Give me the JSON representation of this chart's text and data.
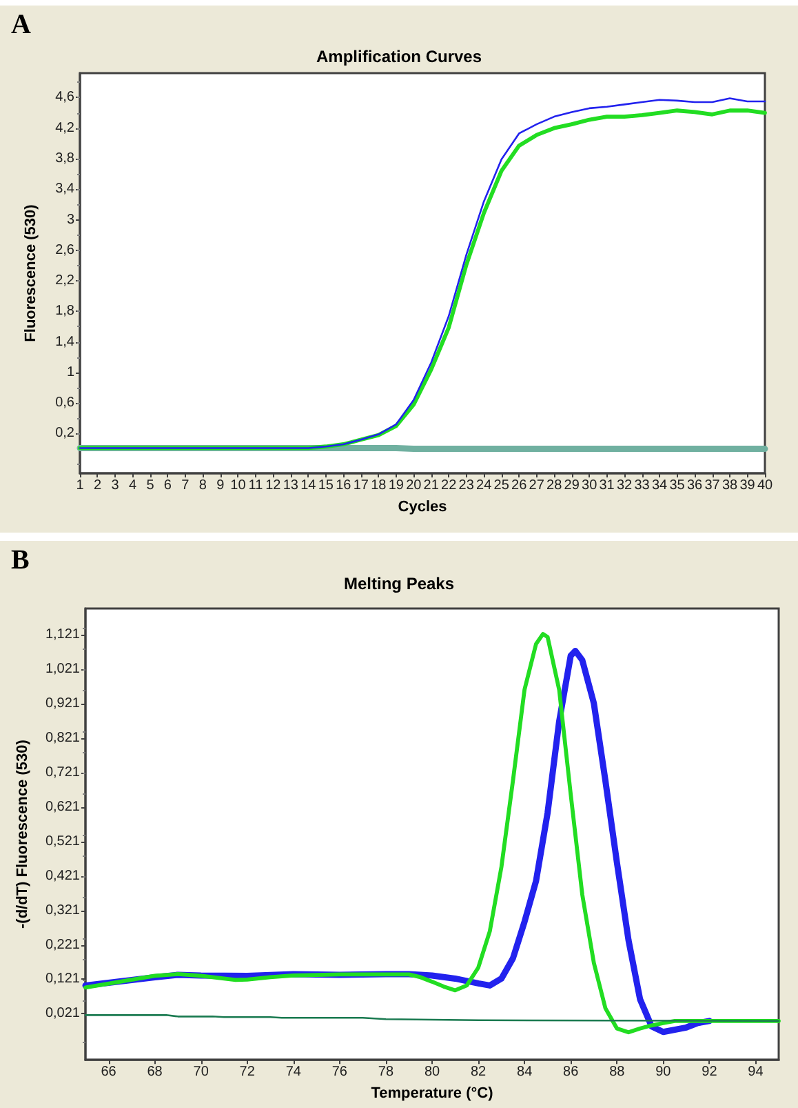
{
  "chart_data": [
    {
      "type": "line",
      "title": "Amplification Curves",
      "xlabel": "Cycles",
      "ylabel": "Fluorescence (530)",
      "annotations": [
        "A"
      ],
      "x": [
        1,
        2,
        3,
        4,
        5,
        6,
        7,
        8,
        9,
        10,
        11,
        12,
        13,
        14,
        15,
        16,
        17,
        18,
        19,
        20,
        21,
        22,
        23,
        24,
        25,
        26,
        27,
        28,
        29,
        30,
        31,
        32,
        33,
        34,
        35,
        36,
        37,
        38,
        39,
        40
      ],
      "xlim": [
        1,
        40
      ],
      "xticks": [
        1,
        2,
        3,
        4,
        5,
        6,
        7,
        8,
        9,
        10,
        11,
        12,
        13,
        14,
        15,
        16,
        17,
        18,
        19,
        20,
        21,
        22,
        23,
        24,
        25,
        26,
        27,
        28,
        29,
        30,
        31,
        32,
        33,
        34,
        35,
        36,
        37,
        38,
        39,
        40
      ],
      "ylim": [
        -0.32,
        4.92
      ],
      "yticks": [
        {
          "value": 0.2,
          "label": "0,2"
        },
        {
          "value": 0.6,
          "label": "0,6"
        },
        {
          "value": 1,
          "label": "1"
        },
        {
          "value": 1.4,
          "label": "1,4"
        },
        {
          "value": 1.8,
          "label": "1,8"
        },
        {
          "value": 2.2,
          "label": "2,2"
        },
        {
          "value": 2.6,
          "label": "2,6"
        },
        {
          "value": 3,
          "label": "3"
        },
        {
          "value": 3.4,
          "label": "3,4"
        },
        {
          "value": 3.8,
          "label": "3,8"
        },
        {
          "value": 4.2,
          "label": "4,2"
        },
        {
          "value": 4.6,
          "label": "4,6"
        }
      ],
      "series": [
        {
          "color": "#70b0a0",
          "values": [
            0.01,
            0.01,
            0.01,
            0.01,
            0.01,
            0.01,
            0.01,
            0.01,
            0.01,
            0.01,
            0.01,
            0.01,
            0.01,
            0.01,
            0.01,
            0.01,
            0.01,
            0.01,
            0.01,
            0.0,
            0.0,
            0.0,
            0.0,
            0.0,
            0.0,
            0.0,
            0.0,
            0.0,
            0.0,
            0.0,
            0.0,
            0.0,
            0.0,
            0.0,
            0.0,
            0.0,
            0.0,
            0.0,
            0.0,
            0.0
          ]
        },
        {
          "color": "#22dd22",
          "values": [
            0.01,
            0.01,
            0.01,
            0.01,
            0.01,
            0.01,
            0.01,
            0.01,
            0.01,
            0.01,
            0.01,
            0.01,
            0.01,
            0.01,
            0.03,
            0.06,
            0.12,
            0.18,
            0.3,
            0.58,
            1.04,
            1.59,
            2.41,
            3.09,
            3.64,
            3.97,
            4.11,
            4.2,
            4.25,
            4.31,
            4.35,
            4.35,
            4.37,
            4.4,
            4.43,
            4.41,
            4.38,
            4.43,
            4.43,
            4.4
          ]
        },
        {
          "color": "#2222ee",
          "values": [
            0.01,
            0.01,
            0.01,
            0.01,
            0.01,
            0.01,
            0.01,
            0.01,
            0.01,
            0.01,
            0.01,
            0.01,
            0.01,
            0.01,
            0.03,
            0.06,
            0.12,
            0.19,
            0.32,
            0.64,
            1.13,
            1.74,
            2.54,
            3.24,
            3.79,
            4.13,
            4.25,
            4.35,
            4.41,
            4.46,
            4.48,
            4.51,
            4.54,
            4.57,
            4.56,
            4.54,
            4.54,
            4.59,
            4.55,
            4.55
          ]
        }
      ]
    },
    {
      "type": "line",
      "title": "Melting Peaks",
      "xlabel": "Temperature (°C)",
      "ylabel": "-(d/dT) Fluorescence (530)",
      "annotations": [
        "B"
      ],
      "xlim": [
        65,
        95
      ],
      "xticks": [
        66,
        68,
        70,
        72,
        74,
        76,
        78,
        80,
        82,
        84,
        86,
        88,
        90,
        92,
        94
      ],
      "ylim": [
        -0.113,
        1.198
      ],
      "yticks": [
        {
          "value": 0.021,
          "label": "0,021"
        },
        {
          "value": 0.121,
          "label": "0,121"
        },
        {
          "value": 0.221,
          "label": "0,221"
        },
        {
          "value": 0.321,
          "label": "0,321"
        },
        {
          "value": 0.421,
          "label": "0,421"
        },
        {
          "value": 0.521,
          "label": "0,521"
        },
        {
          "value": 0.621,
          "label": "0,621"
        },
        {
          "value": 0.721,
          "label": "0,721"
        },
        {
          "value": 0.821,
          "label": "0,821"
        },
        {
          "value": 0.921,
          "label": "0,921"
        },
        {
          "value": 1.021,
          "label": "1,021"
        },
        {
          "value": 1.121,
          "label": "1,121"
        }
      ],
      "series": [
        {
          "color": "#2222ee",
          "x": [
            65,
            68,
            69,
            70,
            72,
            74,
            76,
            78,
            79,
            80,
            81,
            82,
            82.5,
            83,
            83.5,
            84,
            84.5,
            85,
            85.5,
            86,
            86.2,
            86.5,
            87,
            87.5,
            88,
            88.5,
            89,
            89.5,
            90,
            91,
            91.5,
            92
          ],
          "values": [
            0.103,
            0.127,
            0.134,
            0.132,
            0.131,
            0.136,
            0.134,
            0.136,
            0.136,
            0.132,
            0.123,
            0.109,
            0.103,
            0.123,
            0.182,
            0.288,
            0.407,
            0.605,
            0.87,
            1.061,
            1.075,
            1.048,
            0.923,
            0.698,
            0.46,
            0.235,
            0.063,
            -0.016,
            -0.032,
            -0.019,
            -0.006,
            0.0
          ]
        },
        {
          "color": "#22dd22",
          "x": [
            65,
            68,
            69,
            70,
            71,
            71.5,
            72,
            73,
            74,
            76,
            78,
            79,
            79.5,
            80,
            80.5,
            81,
            81.5,
            82,
            82.5,
            83,
            83.5,
            84,
            84.5,
            84.8,
            85,
            85.5,
            86,
            86.5,
            87,
            87.5,
            88,
            88.5,
            89,
            89.5,
            90,
            90.5,
            95
          ],
          "values": [
            0.097,
            0.131,
            0.136,
            0.131,
            0.123,
            0.119,
            0.12,
            0.127,
            0.132,
            0.135,
            0.135,
            0.135,
            0.127,
            0.114,
            0.1,
            0.089,
            0.103,
            0.155,
            0.261,
            0.447,
            0.698,
            0.962,
            1.095,
            1.124,
            1.115,
            0.962,
            0.658,
            0.367,
            0.169,
            0.037,
            -0.022,
            -0.033,
            -0.022,
            -0.013,
            -0.006,
            0.0,
            0.0
          ]
        },
        {
          "color": "#1a7a50",
          "x": [
            65,
            68.5,
            69,
            70.5,
            71,
            73,
            73.5,
            77,
            78,
            82,
            95
          ],
          "values": [
            0.017,
            0.017,
            0.013,
            0.013,
            0.011,
            0.011,
            0.009,
            0.009,
            0.005,
            0.002,
            0.0
          ]
        }
      ]
    }
  ]
}
